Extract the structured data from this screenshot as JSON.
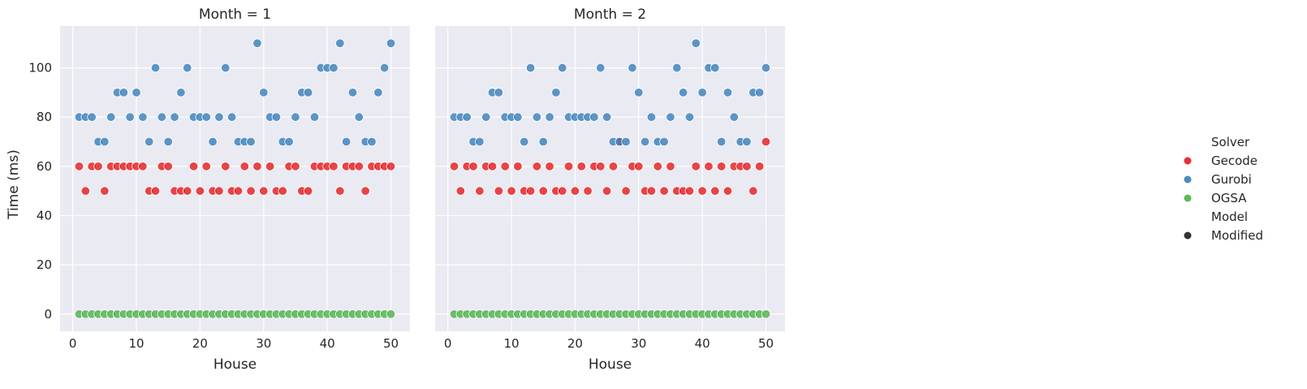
{
  "colors": {
    "gecode": "#e41a1c",
    "gurobi": "#377eb8",
    "ogsa": "#4daf4a",
    "panel_bg": "#eaeaf2",
    "grid": "#ffffff",
    "model": "#333333"
  },
  "chart_data": {
    "type": "scatter",
    "grid": true,
    "legend_position": "right",
    "shared_y": true,
    "xlim": [
      -2,
      53
    ],
    "ylim": [
      -7,
      117
    ],
    "xticks": [
      0,
      10,
      20,
      30,
      40,
      50
    ],
    "yticks": [
      0,
      20,
      40,
      60,
      80,
      100
    ],
    "xlabel": "House",
    "ylabel": "Time (ms)",
    "legend": {
      "hue_title": "Solver",
      "hue_entries": [
        {
          "label": "Gecode",
          "color": "#e41a1c"
        },
        {
          "label": "Gurobi",
          "color": "#377eb8"
        },
        {
          "label": "OGSA",
          "color": "#4daf4a"
        }
      ],
      "style_title": "Model",
      "style_entries": [
        {
          "label": "Modified",
          "color": "#333333"
        }
      ]
    },
    "facets": [
      {
        "title": "Month = 1",
        "x": [
          1,
          2,
          3,
          4,
          5,
          6,
          7,
          8,
          9,
          10,
          11,
          12,
          13,
          14,
          15,
          16,
          17,
          18,
          19,
          20,
          21,
          22,
          23,
          24,
          25,
          26,
          27,
          28,
          29,
          30,
          31,
          32,
          33,
          34,
          35,
          36,
          37,
          38,
          39,
          40,
          41,
          42,
          43,
          44,
          45,
          46,
          47,
          48,
          49,
          50
        ],
        "series": [
          {
            "name": "Gecode",
            "values": [
              60,
              50,
              60,
              60,
              50,
              60,
              60,
              60,
              60,
              60,
              60,
              50,
              50,
              60,
              60,
              50,
              50,
              50,
              60,
              50,
              60,
              50,
              50,
              60,
              50,
              50,
              60,
              50,
              60,
              50,
              60,
              50,
              50,
              60,
              60,
              50,
              50,
              60,
              60,
              60,
              60,
              50,
              60,
              60,
              60,
              50,
              60,
              60,
              60,
              60
            ]
          },
          {
            "name": "Gurobi",
            "values": [
              80,
              80,
              80,
              70,
              70,
              80,
              90,
              90,
              80,
              90,
              80,
              70,
              100,
              80,
              70,
              80,
              90,
              100,
              80,
              80,
              80,
              70,
              80,
              100,
              80,
              70,
              70,
              70,
              110,
              90,
              80,
              80,
              70,
              70,
              80,
              90,
              90,
              80,
              100,
              100,
              100,
              110,
              70,
              90,
              80,
              70,
              70,
              90,
              100,
              110
            ]
          },
          {
            "name": "OGSA",
            "values": [
              0,
              0,
              0,
              0,
              0,
              0,
              0,
              0,
              0,
              0,
              0,
              0,
              0,
              0,
              0,
              0,
              0,
              0,
              0,
              0,
              0,
              0,
              0,
              0,
              0,
              0,
              0,
              0,
              0,
              0,
              0,
              0,
              0,
              0,
              0,
              0,
              0,
              0,
              0,
              0,
              0,
              0,
              0,
              0,
              0,
              0,
              0,
              0,
              0,
              0
            ]
          }
        ]
      },
      {
        "title": "Month = 2",
        "x": [
          1,
          2,
          3,
          4,
          5,
          6,
          7,
          8,
          9,
          10,
          11,
          12,
          13,
          14,
          15,
          16,
          17,
          18,
          19,
          20,
          21,
          22,
          23,
          24,
          25,
          26,
          27,
          28,
          29,
          30,
          31,
          32,
          33,
          34,
          35,
          36,
          37,
          38,
          39,
          40,
          41,
          42,
          43,
          44,
          45,
          46,
          47,
          48,
          49,
          50
        ],
        "series": [
          {
            "name": "Gecode",
            "values": [
              60,
              50,
              60,
              60,
              50,
              60,
              60,
              50,
              60,
              50,
              60,
              50,
              50,
              60,
              50,
              60,
              50,
              50,
              60,
              50,
              60,
              50,
              60,
              60,
              50,
              60,
              70,
              50,
              60,
              60,
              50,
              50,
              60,
              50,
              60,
              50,
              50,
              50,
              60,
              50,
              60,
              50,
              60,
              50,
              60,
              60,
              60,
              50,
              60,
              70
            ]
          },
          {
            "name": "Gurobi",
            "values": [
              80,
              80,
              80,
              70,
              70,
              80,
              90,
              90,
              80,
              80,
              80,
              70,
              100,
              80,
              70,
              80,
              90,
              100,
              80,
              80,
              80,
              80,
              80,
              100,
              80,
              70,
              70,
              70,
              100,
              90,
              70,
              80,
              70,
              70,
              80,
              100,
              90,
              80,
              110,
              90,
              100,
              100,
              70,
              90,
              80,
              70,
              70,
              90,
              90,
              100
            ]
          },
          {
            "name": "OGSA",
            "values": [
              0,
              0,
              0,
              0,
              0,
              0,
              0,
              0,
              0,
              0,
              0,
              0,
              0,
              0,
              0,
              0,
              0,
              0,
              0,
              0,
              0,
              0,
              0,
              0,
              0,
              0,
              0,
              0,
              0,
              0,
              0,
              0,
              0,
              0,
              0,
              0,
              0,
              0,
              0,
              0,
              0,
              0,
              0,
              0,
              0,
              0,
              0,
              0,
              0,
              0
            ]
          }
        ]
      }
    ]
  }
}
